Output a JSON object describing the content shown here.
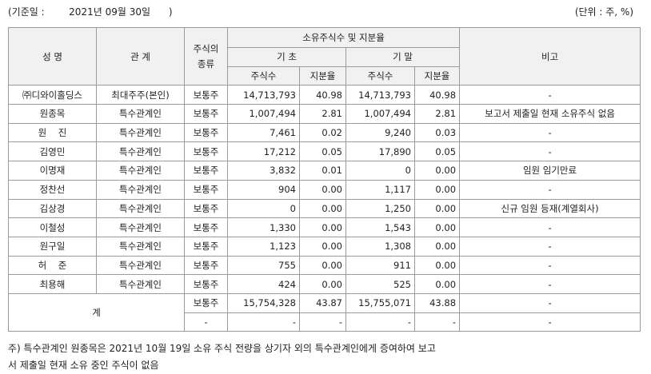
{
  "header": {
    "ref_date": "(기준일 :        2021년 09월 30일      )",
    "unit": "(단위 : 주, %)"
  },
  "table": {
    "headers": {
      "name": "성 명",
      "relation": "관 계",
      "stock_type": "주식의\n종류",
      "ownership_group": "소유주식수 및 지분율",
      "begin": "기 초",
      "end": "기 말",
      "shares": "주식수",
      "ratio": "지분율",
      "remarks": "비고"
    },
    "rows": [
      {
        "name": "㈜디와이홀딩스",
        "relation": "최대주주(본인)",
        "type": "보통주",
        "begin_shares": "14,713,793",
        "begin_ratio": "40.98",
        "end_shares": "14,713,793",
        "end_ratio": "40.98",
        "note": "-"
      },
      {
        "name": "원종목",
        "relation": "특수관계인",
        "type": "보통주",
        "begin_shares": "1,007,494",
        "begin_ratio": "2.81",
        "end_shares": "1,007,494",
        "end_ratio": "2.81",
        "note": "보고서 제출일 현재 소유주식 없음"
      },
      {
        "name": "원    진",
        "relation": "특수관계인",
        "type": "보통주",
        "begin_shares": "7,461",
        "begin_ratio": "0.02",
        "end_shares": "9,240",
        "end_ratio": "0.03",
        "note": "-"
      },
      {
        "name": "김영민",
        "relation": "특수관계인",
        "type": "보통주",
        "begin_shares": "17,212",
        "begin_ratio": "0.05",
        "end_shares": "17,890",
        "end_ratio": "0.05",
        "note": "-"
      },
      {
        "name": "이명재",
        "relation": "특수관계인",
        "type": "보통주",
        "begin_shares": "3,832",
        "begin_ratio": "0.01",
        "end_shares": "0",
        "end_ratio": "0.00",
        "note": "임원 임기만료"
      },
      {
        "name": "정찬선",
        "relation": "특수관계인",
        "type": "보통주",
        "begin_shares": "904",
        "begin_ratio": "0.00",
        "end_shares": "1,117",
        "end_ratio": "0.00",
        "note": "-"
      },
      {
        "name": "김상경",
        "relation": "특수관계인",
        "type": "보통주",
        "begin_shares": "0",
        "begin_ratio": "0.00",
        "end_shares": "1,250",
        "end_ratio": "0.00",
        "note": "신규 임원 등재(계열회사)"
      },
      {
        "name": "이철성",
        "relation": "특수관계인",
        "type": "보통주",
        "begin_shares": "1,330",
        "begin_ratio": "0.00",
        "end_shares": "1,543",
        "end_ratio": "0.00",
        "note": "-"
      },
      {
        "name": "원구일",
        "relation": "특수관계인",
        "type": "보통주",
        "begin_shares": "1,123",
        "begin_ratio": "0.00",
        "end_shares": "1,308",
        "end_ratio": "0.00",
        "note": "-"
      },
      {
        "name": "허    준",
        "relation": "특수관계인",
        "type": "보통주",
        "begin_shares": "755",
        "begin_ratio": "0.00",
        "end_shares": "911",
        "end_ratio": "0.00",
        "note": "-"
      },
      {
        "name": "최용해",
        "relation": "특수관계인",
        "type": "보통주",
        "begin_shares": "424",
        "begin_ratio": "0.00",
        "end_shares": "525",
        "end_ratio": "0.00",
        "note": "-"
      }
    ],
    "total": {
      "label": "계",
      "rows": [
        {
          "type": "보통주",
          "begin_shares": "15,754,328",
          "begin_ratio": "43.87",
          "end_shares": "15,755,071",
          "end_ratio": "43.88",
          "note": "-"
        },
        {
          "type": "-",
          "begin_shares": "-",
          "begin_ratio": "-",
          "end_shares": "-",
          "end_ratio": "-",
          "note": "-"
        }
      ]
    }
  },
  "footnote": {
    "line1": "주) 특수관계인 원종목은 2021년 10월 19일 소유 주식 전량을 상기자 외의 특수관계인에게 증여하여 보고",
    "line2": "서 제출일 현재 소유 중인 주식이 없음"
  }
}
